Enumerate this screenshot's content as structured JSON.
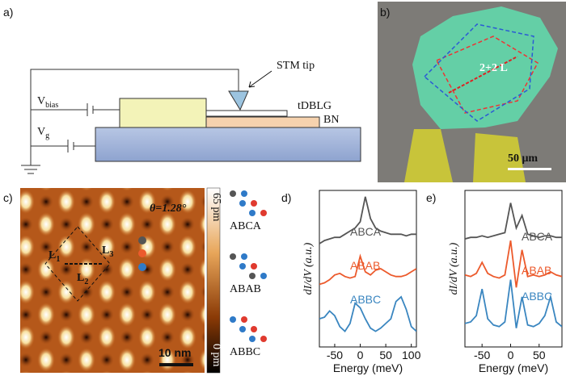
{
  "figure": {
    "a": {
      "label": "a)",
      "stm_tip": "STM tip",
      "v_bias": "V",
      "v_bias_sub": "bias",
      "v_g": "V",
      "v_g_sub": "g",
      "tdblg": "tDBLG",
      "bn": "BN"
    },
    "b": {
      "label": "b)",
      "sample": "2+2 L",
      "scale_bar": "50 μm"
    },
    "c": {
      "label": "c)",
      "angle": "θ=1.28°",
      "l": "L",
      "l1_sub": "1",
      "l2_sub": "2",
      "l3_sub": "3",
      "scale_bar": "10 nm",
      "colorbar_max": "65 pm",
      "colorbar_min": "0 pm",
      "stackings": [
        "ABCA",
        "ABAB",
        "ABBC"
      ]
    }
  },
  "chart_data": [
    {
      "type": "line",
      "label": "d)",
      "y_label": "dI/dV (a.u.)",
      "x_label": "Energy (meV)",
      "x": [
        -80,
        -70,
        -60,
        -50,
        -40,
        -30,
        -20,
        -10,
        0,
        10,
        20,
        30,
        40,
        50,
        60,
        70,
        80,
        90,
        100,
        110
      ],
      "xlim": [
        -80,
        110
      ],
      "xticks": [
        -50,
        0,
        50,
        100
      ],
      "ylim": [
        0,
        10
      ],
      "series": [
        {
          "name": "ABCA",
          "color": "#555555",
          "values": [
            6.6,
            6.8,
            6.9,
            7.0,
            7.0,
            7.2,
            7.4,
            7.6,
            8.0,
            9.6,
            8.2,
            7.6,
            7.4,
            7.3,
            7.2,
            7.2,
            7.2,
            7.1,
            7.2,
            7.2
          ]
        },
        {
          "name": "ABAB",
          "color": "#ec5a2c",
          "values": [
            4.0,
            4.1,
            4.3,
            4.6,
            4.7,
            4.5,
            4.4,
            4.5,
            5.8,
            4.8,
            4.6,
            4.9,
            5.0,
            4.8,
            4.6,
            4.5,
            4.5,
            4.6,
            4.8,
            5.0
          ]
        },
        {
          "name": "ABBC",
          "color": "#3a86c0",
          "values": [
            1.8,
            1.9,
            2.3,
            2.0,
            1.3,
            1.0,
            1.5,
            2.8,
            2.5,
            1.8,
            1.2,
            1.0,
            1.2,
            1.5,
            1.8,
            2.9,
            3.2,
            2.4,
            1.3,
            1.0
          ]
        }
      ]
    },
    {
      "type": "line",
      "label": "e)",
      "y_label": "dI/dV (a.u.)",
      "x_label": "Energy (meV)",
      "x": [
        -80,
        -70,
        -60,
        -50,
        -40,
        -30,
        -20,
        -10,
        0,
        10,
        20,
        30,
        40,
        50,
        60,
        70,
        80,
        90
      ],
      "xlim": [
        -80,
        90
      ],
      "xticks": [
        -50,
        0,
        50
      ],
      "ylim": [
        0,
        10
      ],
      "series": [
        {
          "name": "ABCA",
          "color": "#555555",
          "values": [
            6.9,
            7.0,
            7.0,
            7.1,
            7.0,
            7.1,
            7.2,
            7.3,
            9.2,
            7.6,
            8.4,
            7.2,
            7.1,
            7.0,
            7.1,
            7.1,
            7.0,
            7.0
          ]
        },
        {
          "name": "ABAB",
          "color": "#ec5a2c",
          "values": [
            4.6,
            4.5,
            4.7,
            5.4,
            4.7,
            4.5,
            4.4,
            4.6,
            6.8,
            3.8,
            6.2,
            4.5,
            4.6,
            4.5,
            4.6,
            4.8,
            4.6,
            4.5
          ]
        },
        {
          "name": "ABBC",
          "color": "#3a86c0",
          "values": [
            1.5,
            1.6,
            2.0,
            3.7,
            1.8,
            1.4,
            1.3,
            1.6,
            4.3,
            1.2,
            3.2,
            1.4,
            1.3,
            1.5,
            2.0,
            3.2,
            1.6,
            1.3
          ]
        }
      ]
    }
  ]
}
